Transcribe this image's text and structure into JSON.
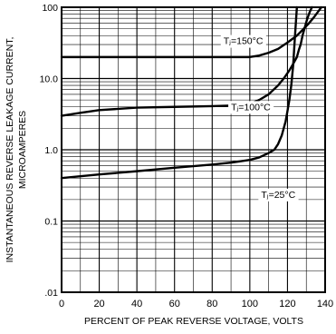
{
  "chart_data": {
    "type": "line",
    "title": "",
    "xlabel": "PERCENT OF PEAK REVERSE VOLTAGE, VOLTS",
    "ylabel_lines": [
      "INSTANTANEOUS REVERSE LEAKAGE CURRENT,",
      "MICROAMPERES"
    ],
    "xlim": [
      0,
      140
    ],
    "ylim": [
      0.01,
      100
    ],
    "yscale": "log",
    "grid": true,
    "x_ticks": [
      0,
      20,
      40,
      60,
      80,
      100,
      120,
      140
    ],
    "x_tick_labels": [
      "0",
      "20",
      "40",
      "60",
      "80",
      "100",
      "120",
      "140"
    ],
    "y_tick_values": [
      0.01,
      0.1,
      1,
      10,
      100
    ],
    "y_tick_labels": [
      ".01",
      "0.1",
      "1.0",
      "10.0",
      "100"
    ],
    "series": [
      {
        "name": "TJ=150°C",
        "label": "Tⱼ=150°C",
        "x": [
          0,
          20,
          40,
          60,
          80,
          100,
          105,
          110,
          115,
          120,
          125,
          128,
          131,
          134,
          136,
          138
        ],
        "y": [
          20,
          20,
          20,
          20,
          20,
          20,
          21,
          23,
          26,
          32,
          40,
          48,
          58,
          72,
          85,
          100
        ]
      },
      {
        "name": "TJ=100°C",
        "label": "Tⱼ=100°C",
        "x": [
          0,
          10,
          20,
          40,
          60,
          80,
          95,
          100,
          105,
          110,
          115,
          118,
          121,
          123,
          125,
          126,
          127,
          128,
          129,
          130,
          131,
          132,
          133
        ],
        "y": [
          3.0,
          3.3,
          3.6,
          3.9,
          4.0,
          4.1,
          4.2,
          4.4,
          5.0,
          6.0,
          8.0,
          10.0,
          13,
          16,
          20,
          25,
          30,
          40,
          50,
          62,
          75,
          88,
          100
        ]
      },
      {
        "name": "TJ=25°C",
        "label": "Tⱼ=25°C",
        "x": [
          0,
          20,
          40,
          60,
          80,
          90,
          100,
          105,
          110,
          113,
          115,
          117,
          119,
          120,
          121,
          122,
          123,
          124,
          125
        ],
        "y": [
          0.4,
          0.45,
          0.5,
          0.56,
          0.62,
          0.66,
          0.72,
          0.78,
          0.9,
          1.0,
          1.2,
          1.6,
          2.5,
          3.5,
          5,
          8,
          15,
          40,
          100
        ]
      }
    ]
  }
}
